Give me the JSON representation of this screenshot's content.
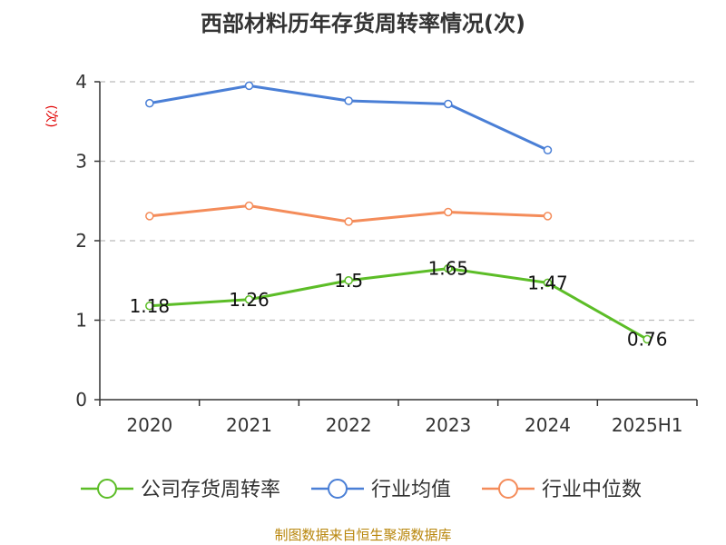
{
  "chart_data": {
    "type": "line",
    "title": "西部材料历年存货周转率情况(次)",
    "ylabel": "(次)",
    "xlabel": "",
    "categories": [
      "2020",
      "2021",
      "2022",
      "2023",
      "2024",
      "2025H1"
    ],
    "ylim": [
      0,
      4
    ],
    "yticks": [
      0,
      1,
      2,
      3,
      4
    ],
    "grid": true,
    "legend_position": "bottom",
    "series": [
      {
        "name": "公司存货周转率",
        "color": "#5cbd27",
        "values": [
          1.18,
          1.26,
          1.5,
          1.65,
          1.47,
          0.76
        ],
        "labels": [
          "1.18",
          "1.26",
          "1.5",
          "1.65",
          "1.47",
          "0.76"
        ]
      },
      {
        "name": "行业均值",
        "color": "#4a7fd6",
        "values": [
          3.73,
          3.95,
          3.76,
          3.72,
          3.14,
          null
        ]
      },
      {
        "name": "行业中位数",
        "color": "#f48c5a",
        "values": [
          2.31,
          2.44,
          2.24,
          2.36,
          2.31,
          null
        ]
      }
    ],
    "source": "制图数据来自恒生聚源数据库"
  }
}
